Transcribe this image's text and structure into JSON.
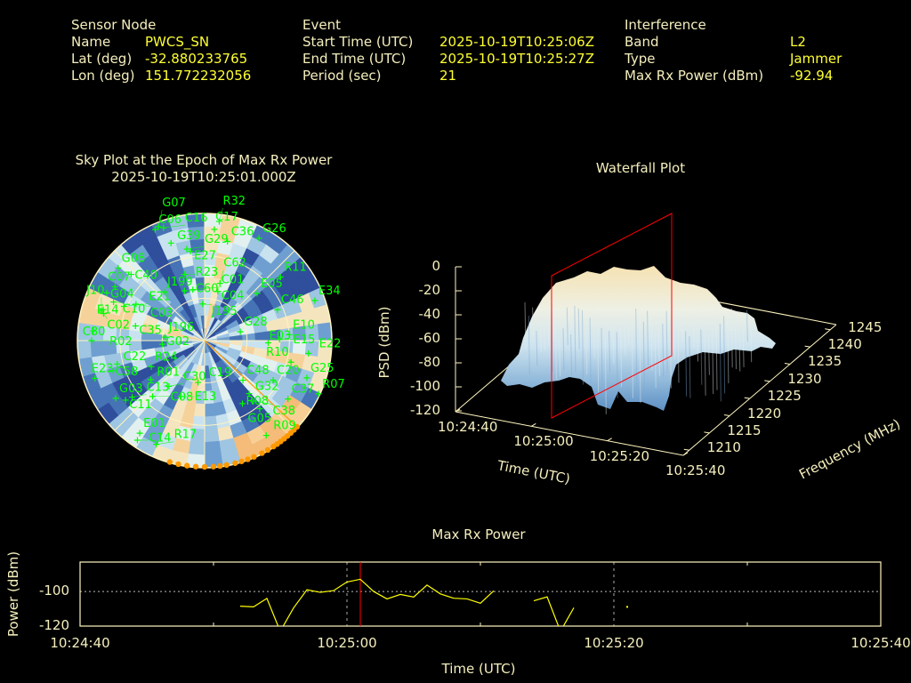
{
  "header": {
    "sensor": {
      "title": "Sensor Node",
      "name_label": "Name",
      "name": "PWCS_SN",
      "lat_label": "Lat (deg)",
      "lat": "-32.880233765",
      "lon_label": "Lon (deg)",
      "lon": "151.772232056"
    },
    "event": {
      "title": "Event",
      "start_label": "Start Time (UTC)",
      "start": "2025-10-19T10:25:06Z",
      "end_label": "End Time (UTC)",
      "end": "2025-10-19T10:25:27Z",
      "period_label": "Period (sec)",
      "period": "21"
    },
    "interference": {
      "title": "Interference",
      "band_label": "Band",
      "band": "L2",
      "type_label": "Type",
      "type": "Jammer",
      "power_label": "Max Rx Power (dBm)",
      "power": "-92.94"
    }
  },
  "colors": {
    "label": "#f5efbd",
    "value": "#ffff33",
    "satellite": "#00ff00",
    "jammer": "#ff9900",
    "marker": "#ff0000",
    "line": "#ffff00"
  },
  "chart_data": [
    {
      "type": "scatter",
      "subtype": "polar-sky-plot",
      "title": "Sky Plot at the Epoch of Max Rx Power",
      "subtitle": "2025-10-19T10:25:01.000Z",
      "elevation_rings": [
        0,
        30,
        60
      ],
      "satellites": [
        {
          "id": "G26",
          "az": 28,
          "el": 8
        },
        {
          "id": "C36",
          "az": 13,
          "el": 18
        },
        {
          "id": "C17",
          "az": 5,
          "el": 11
        },
        {
          "id": "R32",
          "az": 7,
          "el": 5
        },
        {
          "id": "C06",
          "az": 336,
          "el": 4
        },
        {
          "id": "G07",
          "az": 338,
          "el": 3
        },
        {
          "id": "C16",
          "az": 340,
          "el": 5
        },
        {
          "id": "G39",
          "az": 341,
          "el": 17
        },
        {
          "id": "G29",
          "az": 349,
          "el": 24
        },
        {
          "id": "E27",
          "az": 351,
          "el": 26
        },
        {
          "id": "G08",
          "az": 310,
          "el": 10
        },
        {
          "id": "C40",
          "az": 312,
          "el": 20
        },
        {
          "id": "C07",
          "az": 301,
          "el": 16
        },
        {
          "id": "G04",
          "az": 296,
          "el": 13
        },
        {
          "id": "C10",
          "az": 293,
          "el": 20
        },
        {
          "id": "E21",
          "az": 293,
          "el": 28
        },
        {
          "id": "C03",
          "az": 298,
          "el": 35
        },
        {
          "id": "J199",
          "az": 320,
          "el": 45
        },
        {
          "id": "R23",
          "az": 343,
          "el": 41
        },
        {
          "id": "C60",
          "az": 338,
          "el": 52
        },
        {
          "id": "C01",
          "az": 347,
          "el": 53
        },
        {
          "id": "C62",
          "az": 15,
          "el": 48
        },
        {
          "id": "C04",
          "az": 15,
          "el": 54
        },
        {
          "id": "J195",
          "az": 357,
          "el": 64
        },
        {
          "id": "E14",
          "az": 287,
          "el": 15
        },
        {
          "id": "J10",
          "az": 286,
          "el": 14
        },
        {
          "id": "C02",
          "az": 285,
          "el": 16
        },
        {
          "id": "C80",
          "az": 275,
          "el": 11
        },
        {
          "id": "R02",
          "az": 270,
          "el": 10
        },
        {
          "id": "C35",
          "az": 282,
          "el": 40
        },
        {
          "id": "J196",
          "az": 275,
          "el": 62
        },
        {
          "id": "G02",
          "az": 265,
          "el": 60
        },
        {
          "id": "C22",
          "az": 255,
          "el": 26
        },
        {
          "id": "C58",
          "az": 252,
          "el": 21
        },
        {
          "id": "E23",
          "az": 251,
          "el": 8
        },
        {
          "id": "R24",
          "az": 244,
          "el": 48
        },
        {
          "id": "R01",
          "az": 234,
          "el": 43
        },
        {
          "id": "C30",
          "az": 218,
          "el": 49
        },
        {
          "id": "C19",
          "az": 189,
          "el": 60
        },
        {
          "id": "G03",
          "az": 237,
          "el": 15
        },
        {
          "id": "C11",
          "az": 233,
          "el": 20
        },
        {
          "id": "C13",
          "az": 232,
          "el": 25
        },
        {
          "id": "C08",
          "az": 223,
          "el": 36
        },
        {
          "id": "E13",
          "az": 203,
          "el": 47
        },
        {
          "id": "C48",
          "az": 136,
          "el": 51
        },
        {
          "id": "C20",
          "az": 120,
          "el": 34
        },
        {
          "id": "G32",
          "az": 140,
          "el": 41
        },
        {
          "id": "C37",
          "az": 125,
          "el": 18
        },
        {
          "id": "G25",
          "az": 110,
          "el": 13
        },
        {
          "id": "R07",
          "az": 115,
          "el": 1
        },
        {
          "id": "R08",
          "az": 149,
          "el": 38
        },
        {
          "id": "C38",
          "az": 141,
          "el": 35
        },
        {
          "id": "G05",
          "az": 141,
          "el": 28
        },
        {
          "id": "R09",
          "az": 147,
          "el": 10
        },
        {
          "id": "E01",
          "az": 215,
          "el": 10
        },
        {
          "id": "C14",
          "az": 214,
          "el": 5
        },
        {
          "id": "R17",
          "az": 205,
          "el": 9
        },
        {
          "id": "E05",
          "az": 48,
          "el": 40
        },
        {
          "id": "R11",
          "az": 50,
          "el": 20
        },
        {
          "id": "E34",
          "az": 70,
          "el": 7
        },
        {
          "id": "C46",
          "az": 67,
          "el": 34
        },
        {
          "id": "E10",
          "az": 86,
          "el": 30
        },
        {
          "id": "E03",
          "az": 92,
          "el": 45
        },
        {
          "id": "E15",
          "az": 89,
          "el": 37
        },
        {
          "id": "E22",
          "az": 97,
          "el": 16
        },
        {
          "id": "R10",
          "az": 104,
          "el": 27
        },
        {
          "id": "G28",
          "az": 76,
          "el": 64
        }
      ],
      "jammer_azimuth": 133,
      "jammer_track_az": [
        133,
        135,
        137,
        139,
        141,
        143,
        145,
        147,
        150,
        153,
        157,
        160,
        163,
        166,
        170,
        173,
        176,
        180,
        184,
        188,
        192,
        196
      ]
    },
    {
      "type": "surface",
      "title": "Waterfall Plot",
      "xlabel": "Time (UTC)",
      "ylabel": "Frequency (MHz)",
      "zlabel": "PSD (dBm)",
      "x_ticks": [
        "10:24:40",
        "10:25:00",
        "10:25:20",
        "10:25:40"
      ],
      "y_ticks": [
        "1210",
        "1215",
        "1220",
        "1225",
        "1230",
        "1235",
        "1240",
        "1245"
      ],
      "z_ticks": [
        "0",
        "-20",
        "-40",
        "-60",
        "-80",
        "-100",
        "-120"
      ],
      "zlim": [
        -120,
        0
      ],
      "marker_time": "10:25:01"
    },
    {
      "type": "line",
      "title": "Max Rx Power",
      "xlabel": "Time (UTC)",
      "ylabel": "Power (dBm)",
      "x_ticks": [
        "10:24:40",
        "10:25:00",
        "10:25:20",
        "10:25:40"
      ],
      "y_ticks": [
        "-100",
        "-120"
      ],
      "xlim_seconds": [
        0,
        60
      ],
      "ylim": [
        -120,
        -83
      ],
      "marker_t": 21,
      "series": [
        {
          "name": "Max Rx Power",
          "t": [
            12,
            13,
            14,
            15,
            16,
            17,
            18,
            19,
            20,
            21,
            22,
            23,
            24,
            25,
            26,
            27,
            28,
            29,
            30,
            31,
            32,
            33,
            34,
            35,
            36,
            37,
            38,
            39,
            40,
            41
          ],
          "values": [
            -108.5,
            -108.9,
            -104,
            -123,
            -109.5,
            -99,
            -100.5,
            -99.5,
            -94.5,
            -92.94,
            -100,
            -104.3,
            -101.7,
            -103.2,
            -96.3,
            -101.4,
            -103.9,
            -104.3,
            -106.8,
            -99.6,
            null,
            null,
            -105.4,
            -103.1,
            -123,
            -109.4,
            null,
            null,
            null,
            -108.9
          ]
        }
      ]
    }
  ]
}
